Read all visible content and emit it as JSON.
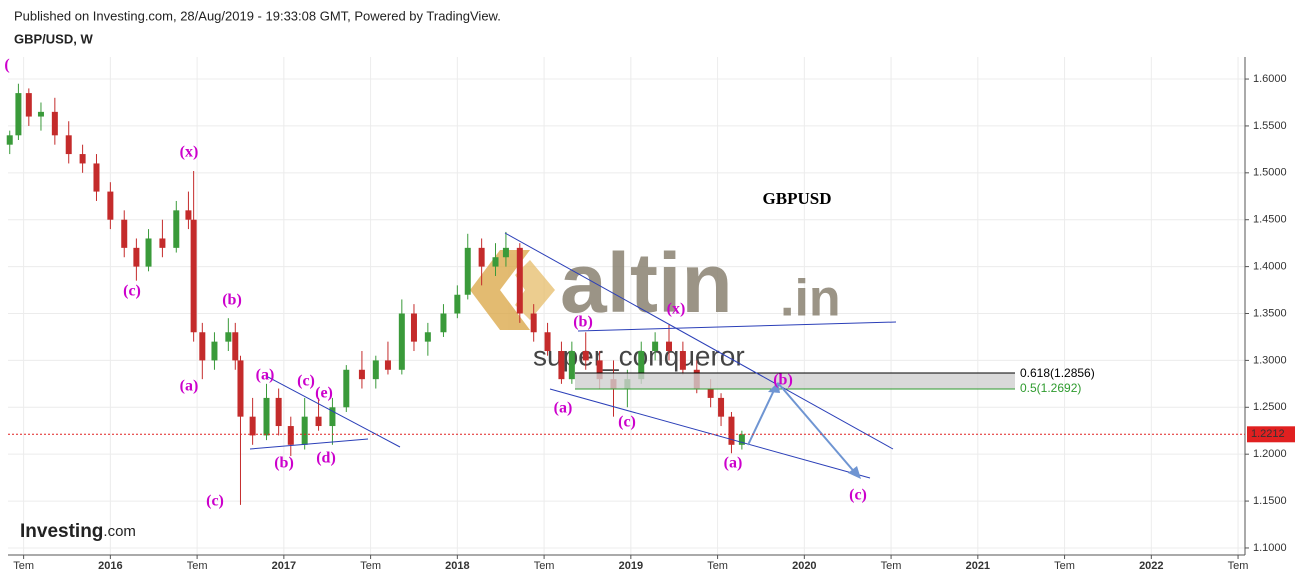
{
  "header": {
    "published": "Published on Investing.com, 28/Aug/2019 - 19:33:08 GMT, Powered by TradingView.",
    "symbol": "GBP/USD, W"
  },
  "watermark": {
    "brand": "altin",
    "domain": ".in",
    "author": "super_conqueror",
    "logo": "Investing",
    "logo_suffix": ".com"
  },
  "chart_data": {
    "type": "candlestick",
    "title": "GBPUSD",
    "up_color": "#3a9a3a",
    "down_color": "#c42b2b",
    "x": [
      2015.42,
      2015.47,
      2015.53,
      2015.6,
      2015.68,
      2015.76,
      2015.84,
      2015.92,
      2016.0,
      2016.08,
      2016.15,
      2016.22,
      2016.3,
      2016.38,
      2016.45,
      2016.48,
      2016.53,
      2016.6,
      2016.68,
      2016.72,
      2016.75,
      2016.82,
      2016.9,
      2016.97,
      2017.04,
      2017.12,
      2017.2,
      2017.28,
      2017.36,
      2017.45,
      2017.53,
      2017.6,
      2017.68,
      2017.75,
      2017.83,
      2017.92,
      2018.0,
      2018.06,
      2018.14,
      2018.22,
      2018.28,
      2018.36,
      2018.44,
      2018.52,
      2018.6,
      2018.66,
      2018.74,
      2018.82,
      2018.9,
      2018.98,
      2019.06,
      2019.14,
      2019.22,
      2019.3,
      2019.38,
      2019.46,
      2019.52,
      2019.58,
      2019.64
    ],
    "open": [
      1.53,
      1.54,
      1.585,
      1.56,
      1.565,
      1.54,
      1.52,
      1.51,
      1.48,
      1.45,
      1.42,
      1.4,
      1.43,
      1.42,
      1.46,
      1.45,
      1.33,
      1.3,
      1.32,
      1.33,
      1.3,
      1.24,
      1.22,
      1.26,
      1.23,
      1.21,
      1.24,
      1.23,
      1.25,
      1.29,
      1.28,
      1.3,
      1.29,
      1.35,
      1.32,
      1.33,
      1.35,
      1.37,
      1.42,
      1.4,
      1.41,
      1.42,
      1.35,
      1.33,
      1.31,
      1.28,
      1.31,
      1.3,
      1.28,
      1.27,
      1.28,
      1.31,
      1.32,
      1.31,
      1.29,
      1.27,
      1.26,
      1.24,
      1.21
    ],
    "high": [
      1.545,
      1.595,
      1.59,
      1.575,
      1.58,
      1.555,
      1.53,
      1.52,
      1.49,
      1.46,
      1.43,
      1.44,
      1.45,
      1.47,
      1.48,
      1.502,
      1.34,
      1.33,
      1.345,
      1.34,
      1.305,
      1.26,
      1.275,
      1.27,
      1.24,
      1.26,
      1.26,
      1.26,
      1.295,
      1.31,
      1.305,
      1.32,
      1.365,
      1.36,
      1.34,
      1.36,
      1.38,
      1.435,
      1.43,
      1.425,
      1.437,
      1.425,
      1.36,
      1.34,
      1.32,
      1.32,
      1.33,
      1.31,
      1.3,
      1.29,
      1.32,
      1.33,
      1.338,
      1.32,
      1.3,
      1.28,
      1.265,
      1.245,
      1.225
    ],
    "low": [
      1.52,
      1.535,
      1.55,
      1.545,
      1.53,
      1.51,
      1.5,
      1.47,
      1.44,
      1.41,
      1.385,
      1.395,
      1.41,
      1.415,
      1.44,
      1.32,
      1.28,
      1.29,
      1.31,
      1.29,
      1.146,
      1.21,
      1.215,
      1.22,
      1.198,
      1.205,
      1.225,
      1.21,
      1.245,
      1.27,
      1.27,
      1.285,
      1.285,
      1.31,
      1.305,
      1.325,
      1.345,
      1.365,
      1.38,
      1.39,
      1.4,
      1.34,
      1.32,
      1.305,
      1.275,
      1.275,
      1.29,
      1.27,
      1.24,
      1.25,
      1.275,
      1.3,
      1.3,
      1.285,
      1.265,
      1.25,
      1.23,
      1.201,
      1.205
    ],
    "close": [
      1.54,
      1.585,
      1.56,
      1.565,
      1.54,
      1.52,
      1.51,
      1.48,
      1.45,
      1.42,
      1.4,
      1.43,
      1.42,
      1.46,
      1.45,
      1.33,
      1.3,
      1.32,
      1.33,
      1.3,
      1.24,
      1.22,
      1.26,
      1.23,
      1.21,
      1.24,
      1.23,
      1.25,
      1.29,
      1.28,
      1.3,
      1.29,
      1.35,
      1.32,
      1.33,
      1.35,
      1.37,
      1.42,
      1.4,
      1.41,
      1.42,
      1.35,
      1.33,
      1.31,
      1.28,
      1.31,
      1.3,
      1.28,
      1.27,
      1.28,
      1.31,
      1.32,
      1.31,
      1.29,
      1.27,
      1.26,
      1.24,
      1.21,
      1.2212
    ],
    "last_price": 1.2212,
    "last_color": "#e02020",
    "xlim": [
      2015.41,
      2022.54
    ],
    "ylim": [
      1.0925,
      1.6235
    ],
    "xticks": [
      {
        "value": 2015.5,
        "label": "Tem"
      },
      2016,
      {
        "value": 2016.5,
        "label": "Tem"
      },
      2017,
      {
        "value": 2017.5,
        "label": "Tem"
      },
      2018,
      {
        "value": 2018.5,
        "label": "Tem"
      },
      2019,
      {
        "value": 2019.5,
        "label": "Tem"
      },
      2020,
      {
        "value": 2020.5,
        "label": "Tem"
      },
      2021,
      {
        "value": 2021.5,
        "label": "Tem"
      },
      2022,
      {
        "value": 2022.5,
        "label": "Tem"
      }
    ],
    "yticks": [
      {
        "value": 1.1,
        "label": "1.1000"
      },
      {
        "value": 1.15,
        "label": "1.1500"
      },
      {
        "value": 1.2,
        "label": "1.2000"
      },
      {
        "value": 1.25,
        "label": "1.2500"
      },
      {
        "value": 1.3,
        "label": "1.3000"
      },
      {
        "value": 1.35,
        "label": "1.3500"
      },
      {
        "value": 1.4,
        "label": "1.4000"
      },
      {
        "value": 1.45,
        "label": "1.4500"
      },
      {
        "value": 1.5,
        "label": "1.5000"
      },
      {
        "value": 1.55,
        "label": "1.5500"
      },
      {
        "value": 1.6,
        "label": "1.6000"
      }
    ],
    "grid": true,
    "fib_labels": [
      "0.618(1.2856)",
      "0.5(1.2692)"
    ],
    "waves": [
      "(",
      "(x)",
      "(c)",
      "(b)",
      "(a)",
      "(c)",
      "(a)",
      "(c)",
      "(e)",
      "(b)",
      "(d)",
      "(b)",
      "(x)",
      "(a)",
      "(c)",
      "(b)",
      "(a)",
      "(c)"
    ]
  }
}
